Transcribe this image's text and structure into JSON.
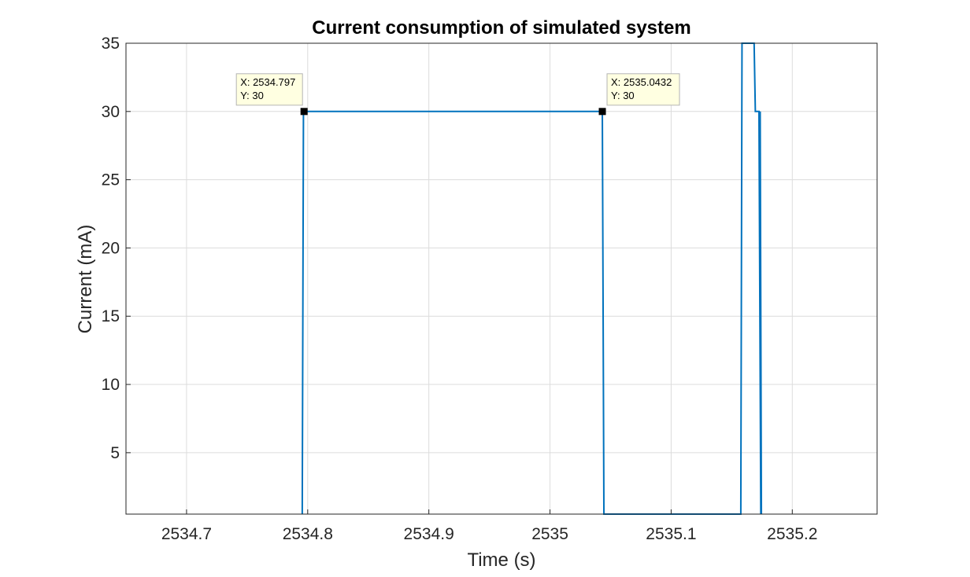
{
  "chart_data": {
    "type": "line",
    "title": "Current consumption of simulated system",
    "xlabel": "Time (s)",
    "ylabel": "Current (mA)",
    "xlim": [
      2534.65,
      2535.27
    ],
    "ylim": [
      0.5,
      35
    ],
    "xticks": [
      2534.7,
      2534.8,
      2534.9,
      2535.0,
      2535.1,
      2535.2
    ],
    "xtick_labels": [
      "2534.7",
      "2534.8",
      "2534.9",
      "2535",
      "2535.1",
      "2535.2"
    ],
    "yticks": [
      5,
      10,
      15,
      20,
      25,
      30,
      35
    ],
    "ytick_labels": [
      "5",
      "10",
      "15",
      "20",
      "25",
      "30",
      "35"
    ],
    "grid": true,
    "series": [
      {
        "color": "#0072bd",
        "x": [
          2534.7955,
          2534.7965,
          2535.0432,
          2535.0445,
          2535.1575,
          2535.1585,
          2535.1685,
          2535.1695,
          2535.1725,
          2535.174,
          2535.1735,
          2535.1745
        ],
        "y": [
          0,
          30,
          30,
          0,
          0,
          35,
          35,
          30,
          30,
          0,
          30,
          0
        ]
      }
    ],
    "datatips": [
      {
        "x": 2534.797,
        "y": 30,
        "x_text": "X: 2534.797",
        "y_text": "Y: 30"
      },
      {
        "x": 2535.0432,
        "y": 30,
        "x_text": "X: 2535.0432",
        "y_text": "Y: 30"
      }
    ]
  }
}
